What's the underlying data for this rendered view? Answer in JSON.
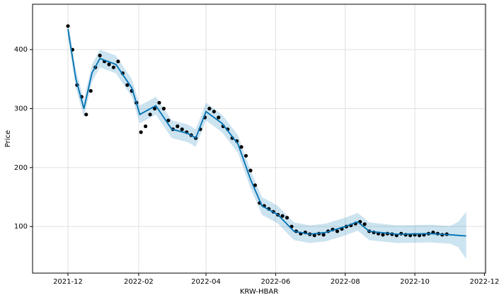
{
  "chart_data": {
    "type": "forecast",
    "x_label": "KRW-HBAR",
    "y_label": "Price",
    "xlim": [
      "2021-10-31",
      "2022-12-02"
    ],
    "ylim": [
      21,
      477
    ],
    "xticks": [
      "2021-12",
      "2022-02",
      "2022-04",
      "2022-06",
      "2022-08",
      "2022-10",
      "2022-12"
    ],
    "yticks": [
      100,
      200,
      300,
      400
    ],
    "grid": true,
    "series": [
      {
        "type": "band",
        "color": "#0072b2",
        "x": [
          "2021-12-01",
          "2021-12-08",
          "2021-12-15",
          "2021-12-22",
          "2021-12-29",
          "2022-01-12",
          "2022-01-26",
          "2022-02-02",
          "2022-02-16",
          "2022-03-02",
          "2022-03-16",
          "2022-03-23",
          "2022-04-01",
          "2022-04-15",
          "2022-04-29",
          "2022-05-10",
          "2022-05-20",
          "2022-06-03",
          "2022-06-17",
          "2022-07-01",
          "2022-07-15",
          "2022-08-01",
          "2022-08-12",
          "2022-08-22",
          "2022-09-15",
          "2022-10-15",
          "2022-11-01",
          "2022-11-08",
          "2022-11-15"
        ],
        "lower": [
          420,
          335,
          285,
          345,
          370,
          360,
          320,
          275,
          290,
          250,
          243,
          235,
          280,
          260,
          225,
          165,
          120,
          105,
          77,
          72,
          75,
          85,
          93,
          77,
          72,
          73,
          71,
          65,
          45
        ],
        "upper": [
          450,
          365,
          315,
          375,
          400,
          390,
          350,
          305,
          320,
          280,
          273,
          265,
          310,
          290,
          255,
          195,
          150,
          135,
          107,
          102,
          105,
          115,
          123,
          107,
          102,
          103,
          101,
          108,
          125
        ]
      },
      {
        "type": "scatter",
        "color": "#000000",
        "x": [
          "2021-12-01",
          "2021-12-05",
          "2021-12-09",
          "2021-12-13",
          "2021-12-17",
          "2021-12-21",
          "2021-12-25",
          "2021-12-29",
          "2022-01-02",
          "2022-01-06",
          "2022-01-10",
          "2022-01-14",
          "2022-01-18",
          "2022-01-22",
          "2022-01-26",
          "2022-01-30",
          "2022-02-03",
          "2022-02-07",
          "2022-02-11",
          "2022-02-15",
          "2022-02-19",
          "2022-02-23",
          "2022-02-27",
          "2022-03-03",
          "2022-03-07",
          "2022-03-11",
          "2022-03-15",
          "2022-03-19",
          "2022-03-23",
          "2022-03-27",
          "2022-03-31",
          "2022-04-04",
          "2022-04-08",
          "2022-04-12",
          "2022-04-16",
          "2022-04-20",
          "2022-04-24",
          "2022-04-28",
          "2022-05-02",
          "2022-05-06",
          "2022-05-10",
          "2022-05-14",
          "2022-05-18",
          "2022-05-22",
          "2022-05-26",
          "2022-05-30",
          "2022-06-03",
          "2022-06-07",
          "2022-06-11",
          "2022-06-15",
          "2022-06-19",
          "2022-06-23",
          "2022-06-27",
          "2022-07-01",
          "2022-07-05",
          "2022-07-09",
          "2022-07-13",
          "2022-07-17",
          "2022-07-21",
          "2022-07-25",
          "2022-07-29",
          "2022-08-02",
          "2022-08-06",
          "2022-08-10",
          "2022-08-14",
          "2022-08-18",
          "2022-08-22",
          "2022-08-26",
          "2022-08-30",
          "2022-09-03",
          "2022-09-07",
          "2022-09-11",
          "2022-09-15",
          "2022-09-19",
          "2022-09-23",
          "2022-09-27",
          "2022-10-01",
          "2022-10-05",
          "2022-10-09",
          "2022-10-13",
          "2022-10-17",
          "2022-10-21",
          "2022-10-25",
          "2022-10-29"
        ],
        "values": [
          440,
          400,
          340,
          320,
          290,
          330,
          370,
          390,
          380,
          375,
          370,
          380,
          360,
          340,
          330,
          310,
          260,
          270,
          290,
          300,
          310,
          300,
          280,
          265,
          270,
          265,
          260,
          255,
          250,
          265,
          285,
          300,
          295,
          285,
          270,
          265,
          250,
          245,
          235,
          220,
          195,
          170,
          140,
          135,
          130,
          125,
          120,
          118,
          115,
          100,
          92,
          88,
          90,
          87,
          85,
          88,
          86,
          92,
          95,
          92,
          96,
          100,
          102,
          105,
          108,
          104,
          92,
          90,
          88,
          86,
          88,
          87,
          85,
          88,
          86,
          85,
          86,
          85,
          86,
          88,
          90,
          88,
          86,
          87
        ]
      },
      {
        "type": "line",
        "color": "#0072b2",
        "x": [
          "2021-12-01",
          "2021-12-08",
          "2021-12-15",
          "2021-12-22",
          "2021-12-29",
          "2022-01-12",
          "2022-01-26",
          "2022-02-02",
          "2022-02-16",
          "2022-03-02",
          "2022-03-16",
          "2022-03-23",
          "2022-04-01",
          "2022-04-15",
          "2022-04-29",
          "2022-05-10",
          "2022-05-20",
          "2022-06-03",
          "2022-06-17",
          "2022-07-01",
          "2022-07-15",
          "2022-08-01",
          "2022-08-12",
          "2022-08-22",
          "2022-09-15",
          "2022-10-15",
          "2022-11-01",
          "2022-11-08",
          "2022-11-15"
        ],
        "values": [
          435,
          350,
          300,
          360,
          385,
          375,
          335,
          290,
          305,
          265,
          258,
          250,
          295,
          275,
          240,
          180,
          135,
          120,
          92,
          87,
          90,
          100,
          108,
          92,
          87,
          88,
          86,
          85,
          84
        ]
      }
    ]
  }
}
